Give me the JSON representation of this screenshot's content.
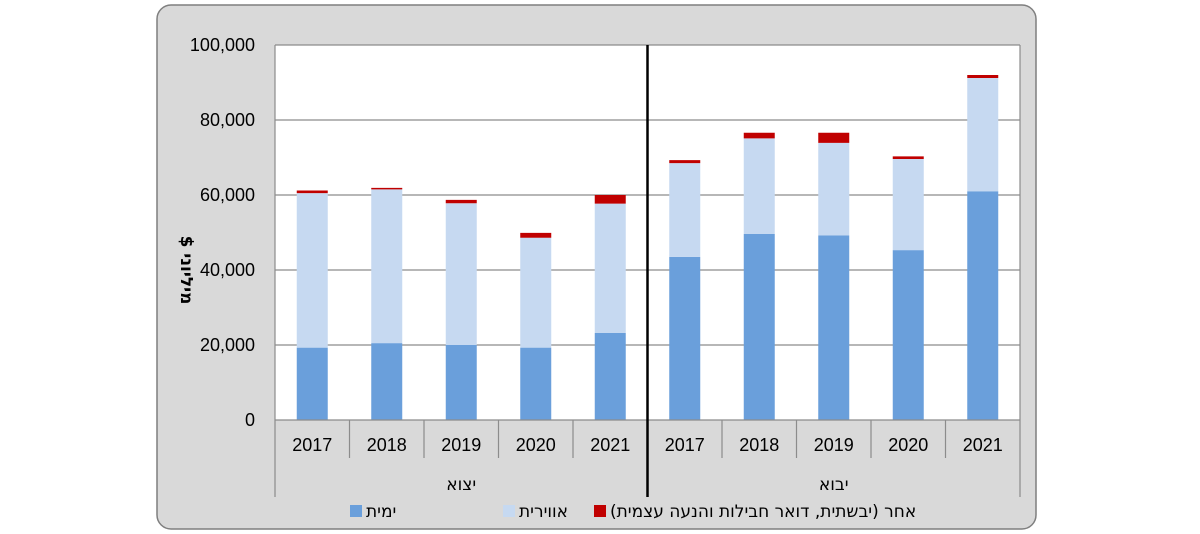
{
  "chart_data": {
    "type": "bar",
    "stacked": true,
    "title": "",
    "xlabel": "",
    "ylabel": "מיליוני $",
    "ylim": [
      0,
      100000
    ],
    "yticks": [
      "0",
      "20,000",
      "40,000",
      "60,000",
      "80,000",
      "100,000"
    ],
    "grid": true,
    "legend_position": "bottom",
    "groups": [
      {
        "label": "יצוא",
        "categories": [
          "2017",
          "2018",
          "2019",
          "2020",
          "2021"
        ]
      },
      {
        "label": "יבוא",
        "categories": [
          "2017",
          "2018",
          "2019",
          "2020",
          "2021"
        ]
      }
    ],
    "series": [
      {
        "name": "ימית",
        "color": "#6a9fdb",
        "values": [
          19300,
          20500,
          20000,
          19300,
          23200,
          43500,
          49600,
          49200,
          45300,
          61000
        ]
      },
      {
        "name": "אווירית",
        "color": "#c6d9f1",
        "values": [
          41200,
          41000,
          37800,
          29300,
          34500,
          25000,
          25500,
          24700,
          24300,
          30200
        ]
      },
      {
        "name": "אחר (יבשתית, דואר חבילות והנעה עצמית)",
        "color": "#c00000",
        "values": [
          700,
          400,
          900,
          1300,
          2300,
          800,
          1500,
          2700,
          700,
          800
        ]
      }
    ]
  }
}
